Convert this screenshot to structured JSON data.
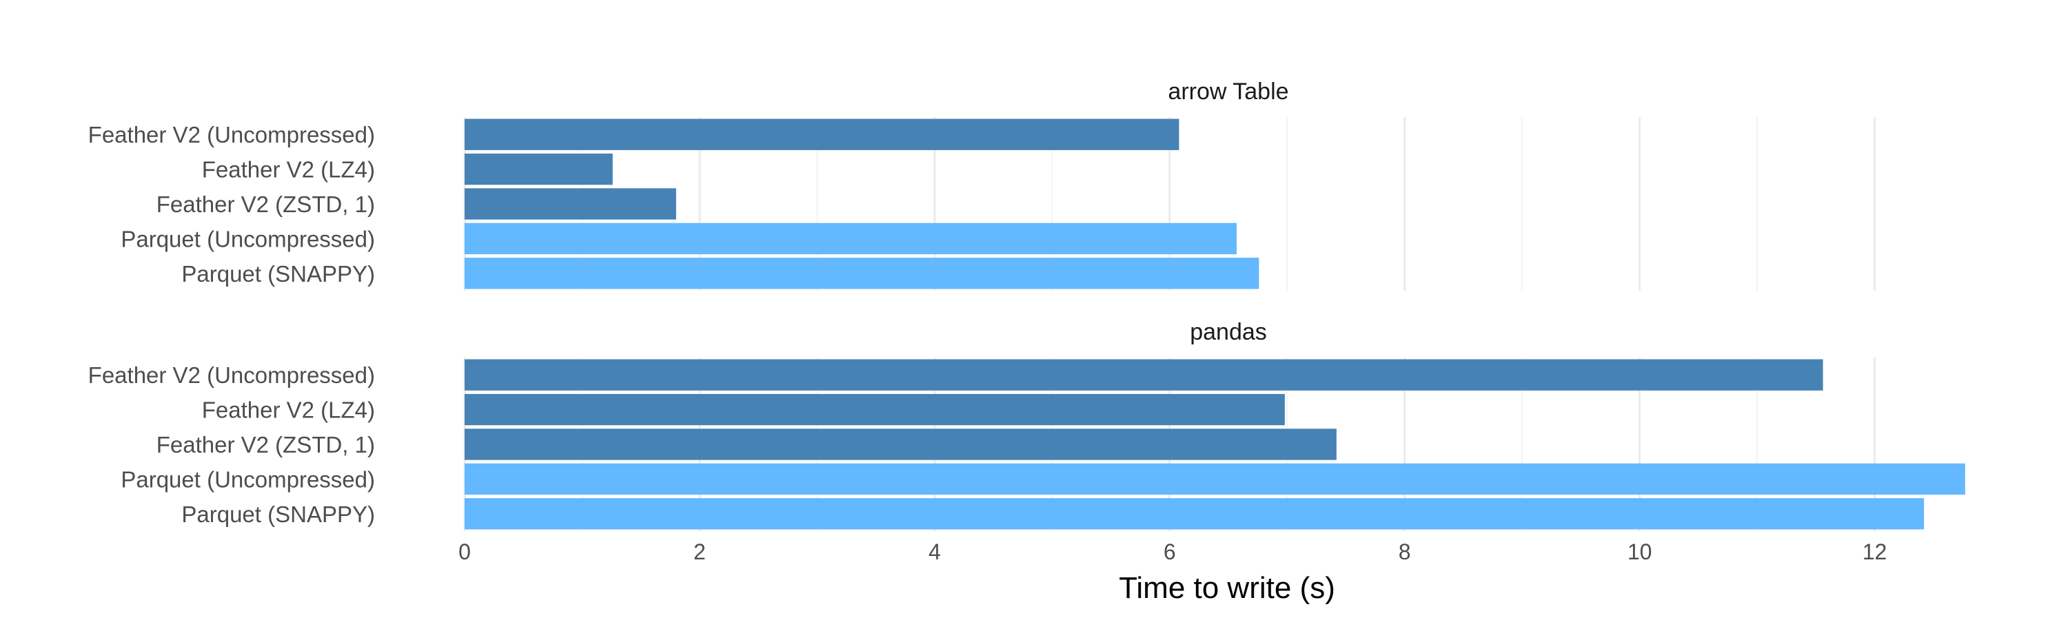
{
  "chart_data": {
    "type": "bar",
    "orientation": "horizontal",
    "xlabel": "Time to write (s)",
    "xlim": [
      0,
      13
    ],
    "xticks": [
      0,
      2,
      4,
      6,
      8,
      10,
      12
    ],
    "grid": true,
    "legend": "none",
    "categories": [
      "Feather V2 (Uncompressed)",
      "Feather V2 (LZ4)",
      "Feather V2 (ZSTD, 1)",
      "Parquet (Uncompressed)",
      "Parquet (SNAPPY)"
    ],
    "category_colors": [
      "#4682b4",
      "#4682b4",
      "#4682b4",
      "#63b8ff",
      "#63b8ff"
    ],
    "panels": [
      {
        "title": "arrow Table",
        "values": [
          6.08,
          1.26,
          1.8,
          6.57,
          6.76
        ]
      },
      {
        "title": "pandas",
        "values": [
          11.56,
          6.98,
          7.42,
          12.77,
          12.42
        ]
      }
    ]
  }
}
